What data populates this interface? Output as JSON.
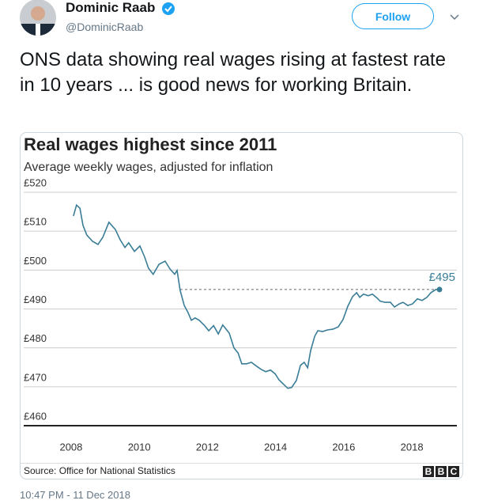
{
  "tweet": {
    "name": "Dominic Raab",
    "handle": "@DominicRaab",
    "follow": "Follow",
    "text": "ONS data showing real wages rising at fastest rate in 10 years ... is good news for working Britain.",
    "timestamp": "10:47 PM - 11 Dec 2018"
  },
  "chart_data": {
    "type": "line",
    "title": "Real wages highest since 2011",
    "subtitle": "Average weekly wages, adjusted for inflation",
    "source": "Source: Office for National Statistics",
    "logo": [
      "B",
      "B",
      "C"
    ],
    "series": [
      {
        "color": "#3a7d97",
        "x": [
          2008.07,
          2008.16,
          2008.26,
          2008.35,
          2008.46,
          2008.63,
          2008.79,
          2008.93,
          2009.11,
          2009.3,
          2009.44,
          2009.58,
          2009.69,
          2009.86,
          2010.02,
          2010.16,
          2010.27,
          2010.41,
          2010.58,
          2010.76,
          2010.9,
          2011.04,
          2011.11,
          2011.2,
          2011.32,
          2011.43,
          2011.53,
          2011.64,
          2011.76,
          2011.92,
          2012.04,
          2012.18,
          2012.32,
          2012.45,
          2012.64,
          2012.78,
          2012.9,
          2013.01,
          2013.15,
          2013.29,
          2013.41,
          2013.57,
          2013.71,
          2013.85,
          2013.99,
          2014.1,
          2014.24,
          2014.36,
          2014.47,
          2014.61,
          2014.73,
          2014.84,
          2014.94,
          2015.03,
          2015.15,
          2015.24,
          2015.38,
          2015.52,
          2015.68,
          2015.84,
          2015.98,
          2016.12,
          2016.26,
          2016.38,
          2016.47,
          2016.58,
          2016.72,
          2016.84,
          2016.98,
          2017.07,
          2017.21,
          2017.37,
          2017.49,
          2017.63,
          2017.74,
          2017.88,
          2018.02,
          2018.16,
          2018.3,
          2018.44,
          2018.56,
          2018.7,
          2018.81
        ],
        "values": [
          513.9,
          516.7,
          515.9,
          511.5,
          509.0,
          507.4,
          506.6,
          508.4,
          512.3,
          510.4,
          507.8,
          505.8,
          507.0,
          504.8,
          506.2,
          503.3,
          500.5,
          498.9,
          501.5,
          502.3,
          500.3,
          498.9,
          499.9,
          494.8,
          490.9,
          489.1,
          487.1,
          487.7,
          487.1,
          485.7,
          484.4,
          485.7,
          483.6,
          485.9,
          483.8,
          480.0,
          478.7,
          475.9,
          475.9,
          476.3,
          475.5,
          474.5,
          473.9,
          474.3,
          473.3,
          471.8,
          470.6,
          469.6,
          469.8,
          471.6,
          475.5,
          476.3,
          474.9,
          479.3,
          483.0,
          484.4,
          484.2,
          484.6,
          484.8,
          485.4,
          487.3,
          490.7,
          493.2,
          494.2,
          493.0,
          493.8,
          493.4,
          493.8,
          492.8,
          492.0,
          491.7,
          491.7,
          490.5,
          491.3,
          491.7,
          490.9,
          491.3,
          492.6,
          492.2,
          493.0,
          494.2,
          495.0,
          495.0
        ]
      }
    ],
    "reference_line": {
      "y": 495,
      "x_start": 2011.2,
      "label": "£495"
    },
    "xlim": [
      2006.61,
      2019.32
    ],
    "ylim": [
      460,
      520
    ],
    "xticks": [
      2008,
      2010,
      2012,
      2014,
      2016,
      2018
    ],
    "yticks": [
      {
        "value": 460,
        "label": "£460"
      },
      {
        "value": 470,
        "label": "£470"
      },
      {
        "value": 480,
        "label": "£480"
      },
      {
        "value": 490,
        "label": "£490"
      },
      {
        "value": 500,
        "label": "£500"
      },
      {
        "value": 510,
        "label": "£510"
      },
      {
        "value": 520,
        "label": "£520"
      }
    ],
    "grid": true
  }
}
